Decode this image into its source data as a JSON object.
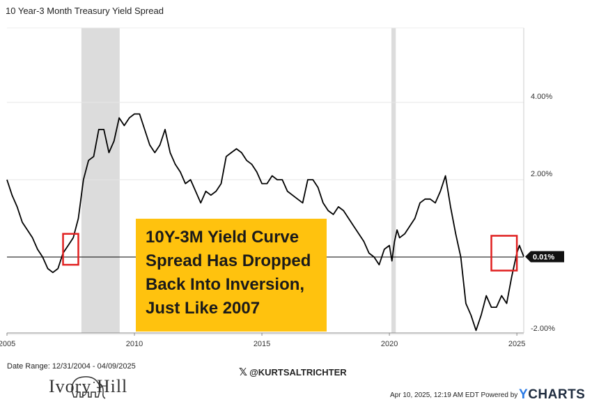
{
  "chart_data": {
    "type": "line",
    "title": "10 Year-3 Month Treasury Yield Spread",
    "xlabel": "",
    "ylabel": "",
    "xlim": [
      2005.0,
      2025.27
    ],
    "ylim": [
      -2.0,
      4.0
    ],
    "x_ticks": [
      "2005",
      "2010",
      "2015",
      "2020",
      "2025"
    ],
    "y_ticks": [
      "4.00%",
      "2.00%",
      "0.00%",
      "-2.00%"
    ],
    "grid": true,
    "recessions": [
      [
        2007.92,
        2009.42
      ],
      [
        2020.08,
        2020.25
      ]
    ],
    "last_value_label": "0.01%",
    "highlight_boxes": [
      [
        2007.2,
        2007.8,
        -0.2,
        0.6
      ],
      [
        2024.0,
        2025.0,
        -0.35,
        0.55
      ]
    ],
    "series": [
      {
        "x": [
          2005.0,
          2005.2,
          2005.4,
          2005.6,
          2005.8,
          2006.0,
          2006.2,
          2006.4,
          2006.6,
          2006.8,
          2007.0,
          2007.2,
          2007.4,
          2007.6,
          2007.8,
          2008.0,
          2008.2,
          2008.4,
          2008.6,
          2008.8,
          2009.0,
          2009.2,
          2009.4,
          2009.6,
          2009.8,
          2010.0,
          2010.2,
          2010.4,
          2010.6,
          2010.8,
          2011.0,
          2011.2,
          2011.4,
          2011.6,
          2011.8,
          2012.0,
          2012.2,
          2012.4,
          2012.6,
          2012.8,
          2013.0,
          2013.2,
          2013.4,
          2013.6,
          2013.8,
          2014.0,
          2014.2,
          2014.4,
          2014.6,
          2014.8,
          2015.0,
          2015.2,
          2015.4,
          2015.6,
          2015.8,
          2016.0,
          2016.2,
          2016.4,
          2016.6,
          2016.8,
          2017.0,
          2017.2,
          2017.4,
          2017.6,
          2017.8,
          2018.0,
          2018.2,
          2018.4,
          2018.6,
          2018.8,
          2019.0,
          2019.2,
          2019.4,
          2019.6,
          2019.8,
          2020.0,
          2020.1,
          2020.2,
          2020.3,
          2020.4,
          2020.6,
          2020.8,
          2021.0,
          2021.2,
          2021.4,
          2021.6,
          2021.8,
          2022.0,
          2022.2,
          2022.4,
          2022.6,
          2022.8,
          2023.0,
          2023.2,
          2023.4,
          2023.6,
          2023.8,
          2024.0,
          2024.2,
          2024.4,
          2024.6,
          2024.8,
          2025.0,
          2025.1,
          2025.27
        ],
        "y": [
          2.0,
          1.6,
          1.3,
          0.9,
          0.7,
          0.5,
          0.2,
          0.0,
          -0.3,
          -0.4,
          -0.3,
          0.1,
          0.3,
          0.5,
          1.0,
          2.0,
          2.5,
          2.6,
          3.3,
          3.3,
          2.7,
          3.0,
          3.6,
          3.4,
          3.6,
          3.7,
          3.7,
          3.3,
          2.9,
          2.7,
          2.9,
          3.3,
          2.7,
          2.4,
          2.2,
          1.9,
          2.0,
          1.7,
          1.4,
          1.7,
          1.6,
          1.7,
          1.9,
          2.6,
          2.7,
          2.8,
          2.7,
          2.5,
          2.4,
          2.2,
          1.9,
          1.9,
          2.1,
          2.0,
          2.0,
          1.7,
          1.6,
          1.5,
          1.4,
          2.0,
          2.0,
          1.8,
          1.4,
          1.2,
          1.1,
          1.3,
          1.2,
          1.0,
          0.8,
          0.6,
          0.4,
          0.1,
          0.0,
          -0.2,
          0.2,
          0.3,
          -0.1,
          0.4,
          0.7,
          0.5,
          0.6,
          0.8,
          1.0,
          1.4,
          1.5,
          1.5,
          1.4,
          1.7,
          2.1,
          1.3,
          0.6,
          0.0,
          -1.2,
          -1.5,
          -1.9,
          -1.5,
          -1.0,
          -1.3,
          -1.3,
          -1.0,
          -1.2,
          -0.5,
          0.1,
          0.3,
          0.01
        ]
      }
    ]
  },
  "callout_lines": [
    "10Y-3M Yield Curve",
    "Spread Has Dropped",
    "Back Into Inversion,",
    "Just Like 2007"
  ],
  "date_range": "Date Range: 12/31/2004 - 04/09/2025",
  "brand_name": "Ivory Hill",
  "handle": "@KURTSALTRICHTER",
  "footer": "Apr 10, 2025, 12:19 AM EDT Powered by",
  "ycharts": {
    "y": "Y",
    "rest": "CHARTS"
  },
  "colors": {
    "line": "#000000",
    "recession": "#dcdcdc",
    "highlight": "#e02020",
    "callout": "#ffc20e",
    "grid": "#e6e6e6"
  }
}
